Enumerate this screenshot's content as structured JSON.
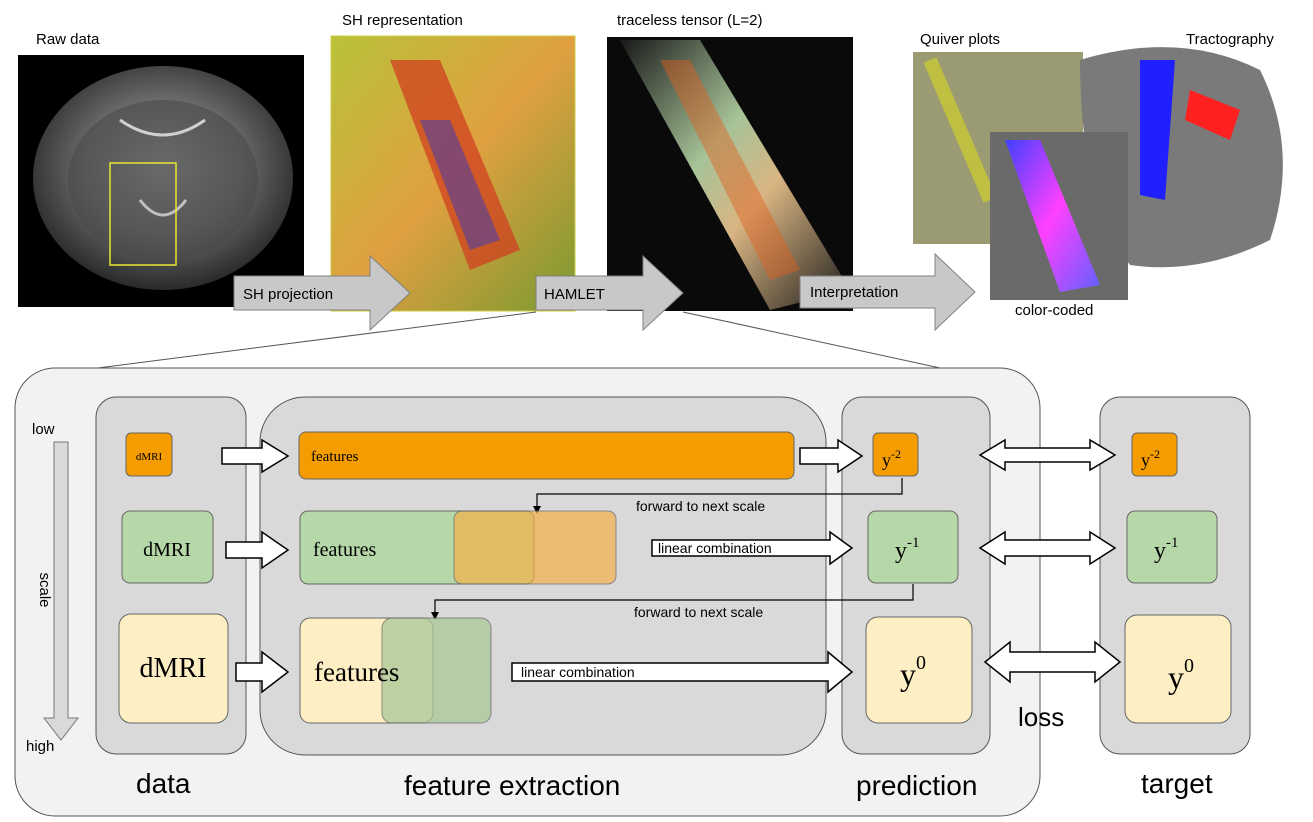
{
  "top": {
    "raw_data": "Raw data",
    "sh_representation": "SH representation",
    "traceless_tensor": "traceless tensor (L=2)",
    "quiver_plots": "Quiver  plots",
    "tractography": "Tractography",
    "color_coded": "color-coded",
    "arrow_sh_projection": "SH projection",
    "arrow_hamlet": "HAMLET",
    "arrow_interpretation": "Interpretation"
  },
  "scale": {
    "low": "low",
    "high": "high",
    "axis": "scale"
  },
  "sections": {
    "data": "data",
    "feature_extraction": "feature extraction",
    "prediction": "prediction",
    "target": "target",
    "loss": "loss"
  },
  "boxes": {
    "dmri": "dMRI",
    "features": "features",
    "y_base": "y",
    "exp_low": "-2",
    "exp_mid": "-1",
    "exp_high": "0"
  },
  "arrows": {
    "forward_1": "forward to next scale",
    "forward_2": "forward to next scale",
    "linear_1": "linear combination",
    "linear_2": "linear combination"
  },
  "colors": {
    "orange": "#f59c00",
    "green": "#b6d8a8",
    "cream": "#fdeec4",
    "panel": "#d9d9d9",
    "outer": "#f2f2f2",
    "arrow_gray": "#c8c8c8"
  }
}
